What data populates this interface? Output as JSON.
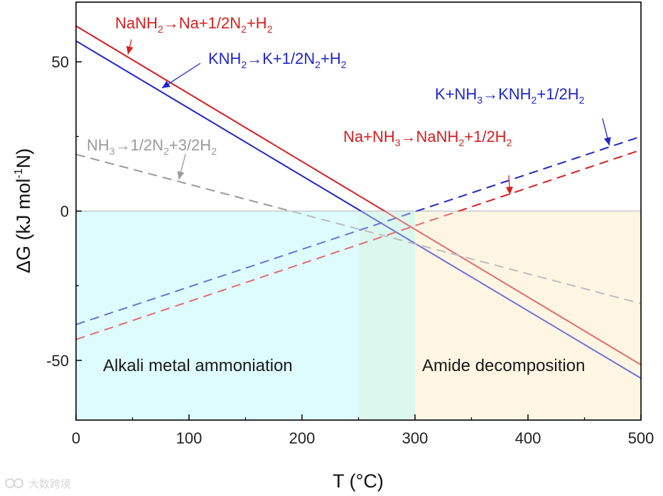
{
  "chart_data": {
    "type": "line",
    "xlabel": "T (°C)",
    "ylabel_main": "ΔG (kJ mol",
    "ylabel_sup": "-1",
    "ylabel_end": "N)",
    "xlim": [
      0,
      500
    ],
    "ylim": [
      -70,
      70
    ],
    "xticks": [
      0,
      100,
      200,
      300,
      400,
      500
    ],
    "yticks_labeled": [
      -50,
      0,
      50
    ],
    "yticks_unlabeled": [
      -25,
      25
    ],
    "zero_line": true,
    "regions": [
      {
        "name": "Alkali metal ammoniation",
        "x_from": 0,
        "x_to": 251,
        "color": "#cdfafc"
      },
      {
        "name": "overlap",
        "x_from": 251,
        "x_to": 300,
        "color": "#c9f3e4"
      },
      {
        "name": "Amide decomposition",
        "x_from": 300,
        "x_to": 500,
        "color": "#fdf0d5"
      }
    ],
    "series": [
      {
        "name": "NaNH2→Na+1/2N2+H2",
        "style": "solid",
        "color": "#d61f1f",
        "x": [
          0,
          500
        ],
        "y": [
          62.0,
          -51.5
        ]
      },
      {
        "name": "KNH2→K+1/2N2+H2",
        "style": "solid",
        "color": "#1f27c8",
        "x": [
          0,
          500
        ],
        "y": [
          57.0,
          -56.0
        ]
      },
      {
        "name": "NH3→1/2N2+3/2H2",
        "style": "dashed",
        "color": "#9a9a9a",
        "x": [
          0,
          500
        ],
        "y": [
          19.0,
          -31.0
        ]
      },
      {
        "name": "K+NH3→KNH2+1/2H2",
        "style": "dashed",
        "color": "#1f27c8",
        "x": [
          0,
          500
        ],
        "y": [
          -38.0,
          25.0
        ]
      },
      {
        "name": "Na+NH3→NaNH2+1/2H2",
        "style": "dashed",
        "color": "#d61f1f",
        "x": [
          0,
          500
        ],
        "y": [
          -43.0,
          20.5
        ]
      }
    ]
  },
  "labels": {
    "region_left": "Alkali metal ammoniation",
    "region_right": "Amide decomposition",
    "ann1": {
      "a": "NaNH",
      "s1": "2",
      "b": "→Na+1/2N",
      "s2": "2",
      "c": "+H",
      "s3": "2"
    },
    "ann2": {
      "a": "KNH",
      "s1": "2",
      "b": "→K+1/2N",
      "s2": "2",
      "c": "+H",
      "s3": "2"
    },
    "ann3": {
      "a": "NH",
      "s1": "3",
      "b": "→1/2N",
      "s2": "2",
      "c": "+3/2H",
      "s3": "2"
    },
    "ann4": {
      "a": "K+NH",
      "s1": "3",
      "b": "→KNH",
      "s2": "2",
      "c": "+1/2H",
      "s3": "2"
    },
    "ann5": {
      "a": "Na+NH",
      "s1": "3",
      "b": "→NaNH",
      "s2": "2",
      "c": "+1/2H",
      "s3": "2"
    }
  },
  "watermark": "大数跨境",
  "colors": {
    "red": "#d61f1f",
    "blue": "#1f27c8",
    "gray": "#9a9a9a",
    "zero_line": "#b8bcc8"
  }
}
